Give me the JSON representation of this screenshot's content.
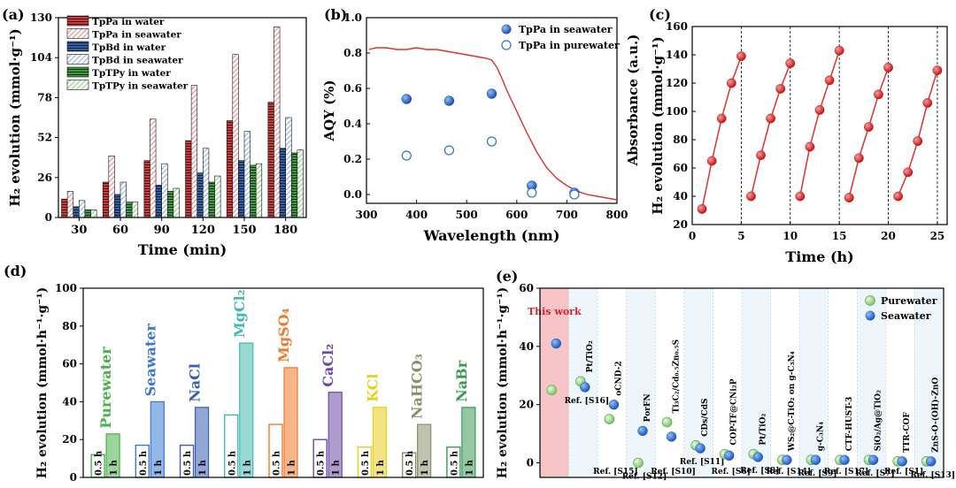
{
  "panel_labels": {
    "a": "(a)",
    "b": "(b)",
    "c": "(c)",
    "d": "(d)",
    "e": "(e)"
  },
  "colors": {
    "red": "#d23a3a",
    "blue": "#2e6ab5",
    "green": "#3f9a3f",
    "line_red": "#e03030",
    "sphere_blue": "#2f6fd0",
    "sphere_green": "#a9e09a"
  },
  "chart_data": [
    {
      "id": "a",
      "type": "bar",
      "xlabel": "Time (min)",
      "ylabel": "H₂ evolution (mmol·g⁻¹)",
      "ylim": [
        0,
        130
      ],
      "yticks": [
        0,
        26,
        52,
        78,
        104,
        130
      ],
      "categories": [
        "30",
        "60",
        "90",
        "120",
        "150",
        "180"
      ],
      "series": [
        {
          "name": "TpPa in water",
          "values": [
            12,
            23,
            37,
            50,
            63,
            75
          ],
          "color": "#d23a3a",
          "hatch": false
        },
        {
          "name": "TpPa in seawater",
          "values": [
            17,
            40,
            64,
            86,
            106,
            124
          ],
          "color": "#e88a8a",
          "hatch": true
        },
        {
          "name": "TpBd in water",
          "values": [
            7,
            15,
            21,
            29,
            37,
            45
          ],
          "color": "#2e5fa8",
          "hatch": false
        },
        {
          "name": "TpBd in seawater",
          "values": [
            11,
            23,
            35,
            45,
            56,
            65
          ],
          "color": "#8fb0dd",
          "hatch": true
        },
        {
          "name": "TpTPy in water",
          "values": [
            5,
            10,
            17,
            23,
            34,
            42
          ],
          "color": "#3f9a3f",
          "hatch": false
        },
        {
          "name": "TpTPy in seawater",
          "values": [
            5,
            10,
            19,
            27,
            35,
            44
          ],
          "color": "#8ccf7c",
          "hatch": true
        }
      ]
    },
    {
      "id": "b",
      "type": "scatter",
      "xlabel": "Wavelength (nm)",
      "ylabel": "AQY (%)",
      "xlim": [
        300,
        800
      ],
      "ylim": [
        -0.05,
        1.0
      ],
      "xticks": [
        300,
        400,
        500,
        600,
        700,
        800
      ],
      "yticks": [
        0.0,
        0.2,
        0.4,
        0.6,
        0.8,
        1.0
      ],
      "series": [
        {
          "name": "TpPa in seawater",
          "filled": true,
          "x": [
            380,
            465,
            550,
            630,
            715
          ],
          "y": [
            0.54,
            0.53,
            0.57,
            0.05,
            0.01
          ]
        },
        {
          "name": "TpPa in purewater",
          "filled": false,
          "x": [
            380,
            465,
            550,
            630,
            715
          ],
          "y": [
            0.22,
            0.25,
            0.3,
            0.01,
            0.0
          ]
        }
      ],
      "absorbance_curve": {
        "x": [
          305,
          320,
          340,
          360,
          380,
          400,
          420,
          440,
          460,
          480,
          500,
          520,
          540,
          550,
          560,
          570,
          580,
          600,
          620,
          640,
          660,
          680,
          700,
          720,
          740,
          760,
          780,
          800
        ],
        "y": [
          0.82,
          0.83,
          0.83,
          0.82,
          0.82,
          0.83,
          0.82,
          0.82,
          0.81,
          0.8,
          0.79,
          0.78,
          0.77,
          0.76,
          0.72,
          0.66,
          0.59,
          0.47,
          0.35,
          0.24,
          0.15,
          0.09,
          0.05,
          0.02,
          0.0,
          -0.01,
          -0.02,
          -0.03
        ]
      },
      "right_ylabel": "Absorbance (a.u.)"
    },
    {
      "id": "c",
      "type": "line",
      "xlabel": "Time (h)",
      "ylabel": "H₂ evolution (mmol·g⁻¹)",
      "xlim": [
        0,
        26
      ],
      "ylim": [
        20,
        160
      ],
      "xticks": [
        0,
        5,
        10,
        15,
        20,
        25
      ],
      "yticks": [
        20,
        40,
        60,
        80,
        100,
        120,
        140,
        160
      ],
      "dividers": [
        5,
        10,
        15,
        20,
        25
      ],
      "cycles": [
        {
          "x": [
            1,
            2,
            3,
            4,
            5
          ],
          "y": [
            31,
            65,
            95,
            120,
            139
          ]
        },
        {
          "x": [
            6,
            7,
            8,
            9,
            10
          ],
          "y": [
            40,
            69,
            95,
            116,
            134
          ]
        },
        {
          "x": [
            11,
            12,
            13,
            14,
            15
          ],
          "y": [
            40,
            75,
            101,
            122,
            143
          ]
        },
        {
          "x": [
            16,
            17,
            18,
            19,
            20
          ],
          "y": [
            39,
            67,
            89,
            112,
            131
          ]
        },
        {
          "x": [
            21,
            22,
            23,
            24,
            25
          ],
          "y": [
            40,
            57,
            79,
            106,
            129
          ]
        }
      ]
    },
    {
      "id": "d",
      "type": "bar",
      "ylabel": "H₂ evolution (mmol·h⁻¹·g⁻¹)",
      "ylim": [
        0,
        100
      ],
      "yticks": [
        0,
        20,
        40,
        60,
        80,
        100
      ],
      "bar_labels": [
        "0.5 h",
        "1 h"
      ],
      "groups": [
        {
          "name": "Purewater",
          "label": "Purewater",
          "color": "#49b14a",
          "v05": 12,
          "v1": 23
        },
        {
          "name": "Seawater",
          "label": "Seawater",
          "color": "#3b78d4",
          "v05": 17,
          "v1": 40
        },
        {
          "name": "NaCl",
          "label": "NaCl",
          "color": "#3a5fb0",
          "v05": 17,
          "v1": 37
        },
        {
          "name": "MgCl2",
          "label": "MgCl₂",
          "color": "#43b9b2",
          "v05": 33,
          "v1": 71
        },
        {
          "name": "MgSO4",
          "label": "MgSO₄",
          "color": "#f07a2a",
          "v05": 28,
          "v1": 58
        },
        {
          "name": "CaCl2",
          "label": "CaCl₂",
          "color": "#6e4aa6",
          "v05": 20,
          "v1": 45
        },
        {
          "name": "KCl",
          "label": "KCl",
          "color": "#e8d01a",
          "v05": 16,
          "v1": 37
        },
        {
          "name": "NaHCO3",
          "label": "NaHCO₃",
          "color": "#8a8f6a",
          "v05": 13,
          "v1": 28
        },
        {
          "name": "NaBr",
          "label": "NaBr",
          "color": "#3a9a55",
          "v05": 16,
          "v1": 37
        }
      ]
    },
    {
      "id": "e",
      "type": "scatter",
      "ylabel": "H₂ evolution (mmol·h⁻¹·g⁻¹)",
      "ylim": [
        -5,
        60
      ],
      "yticks": [
        0,
        20,
        40,
        60
      ],
      "legend": [
        "Purewater",
        "Seawater"
      ],
      "highlight": "This work",
      "points": [
        {
          "pure": 25,
          "sea": 41,
          "name": "This work",
          "ref": ""
        },
        {
          "pure": 28,
          "sea": 26,
          "name": "Pt/TiO₂",
          "ref": "Ref. [S16]"
        },
        {
          "pure": 15,
          "sea": 20,
          "name": "oCND-2",
          "ref": "Ref. [S15]"
        },
        {
          "pure": 0,
          "sea": 11,
          "name": "PorFN",
          "ref": "Ref. [S12]"
        },
        {
          "pure": 14,
          "sea": 9,
          "name": "Ti₃C₂/Cd₀.₅Zn₀.₅S",
          "ref": "Ref. [S10]"
        },
        {
          "pure": 6,
          "sea": 5,
          "name": "CDs/CdS",
          "ref": "Ref. [S11]"
        },
        {
          "pure": 3,
          "sea": 2.5,
          "name": "COP-TF@CNi₂P",
          "ref": "Ref. [S6]"
        },
        {
          "pure": 3,
          "sea": 2,
          "name": "Pt/TiO₂",
          "ref": "Ref. [S8]"
        },
        {
          "pure": 1,
          "sea": 1,
          "name": "WS₂@C-TiO₂ on g-C₃N₄",
          "ref": "Ref. [S14]"
        },
        {
          "pure": 1,
          "sea": 1,
          "name": "g-C₃N₄",
          "ref": "Ref. [S9]"
        },
        {
          "pure": 1,
          "sea": 1,
          "name": "CTF-HUST-3",
          "ref": "Ref. [S17]"
        },
        {
          "pure": 1,
          "sea": 1,
          "name": "SiO₂/Ag@TiO₂",
          "ref": "Ref. [S7]"
        },
        {
          "pure": 0.5,
          "sea": 0.5,
          "name": "TTR-COF",
          "ref": "Ref. [S1]"
        },
        {
          "pure": 0.5,
          "sea": 0.5,
          "name": "ZnS-O-(OH)-ZnO",
          "ref": "Ref. [S13]"
        }
      ]
    }
  ]
}
